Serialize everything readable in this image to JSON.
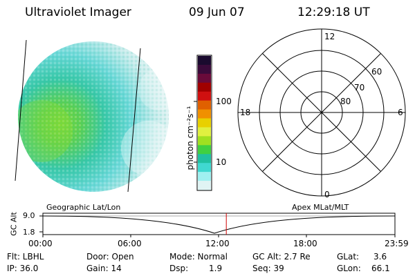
{
  "header": {
    "instrument": "Ultraviolet Imager",
    "date": "09 Jun 07",
    "time": "12:29:18 UT"
  },
  "colorbar": {
    "unit_label": "photon cm⁻²s⁻¹",
    "ticks": [
      "100",
      "10"
    ],
    "colors": [
      "#1a0a2e",
      "#3a0a3a",
      "#6a0a3a",
      "#a00000",
      "#d01010",
      "#e06000",
      "#f09000",
      "#e8d000",
      "#e0f040",
      "#a0e020",
      "#40d040",
      "#20c0a0",
      "#40d8d0",
      "#a0f0f0",
      "#e0f4f4"
    ]
  },
  "polar_plot": {
    "mlt_labels": [
      "12",
      "18",
      "6",
      "0"
    ],
    "lat_labels": [
      "60",
      "70",
      "80"
    ]
  },
  "timeline": {
    "y_label": "GC Alt",
    "y_ticks": [
      "9.0",
      "1.8"
    ],
    "left_title": "Geographic Lat/Lon",
    "right_title": "Apex MLat/MLT",
    "x_ticks": [
      "00:00",
      "06:00",
      "12:00",
      "18:00",
      "23:59"
    ],
    "current_time_fraction": 0.521
  },
  "info": {
    "row1": {
      "flt": "Flt: LBHL",
      "door": "Door: Open",
      "mode": "Mode: Normal",
      "gc_alt": "GC Alt: 2.7 Re",
      "glat_label": "GLat:",
      "glat_value": "3.6"
    },
    "row2": {
      "ip": "IP: 36.0",
      "gain": "Gain: 14",
      "dsp_label": "Dsp:",
      "dsp_value": "1.9",
      "seq": "Seq: 39",
      "glon_label": "GLon:",
      "glon_value": "66.1"
    }
  }
}
